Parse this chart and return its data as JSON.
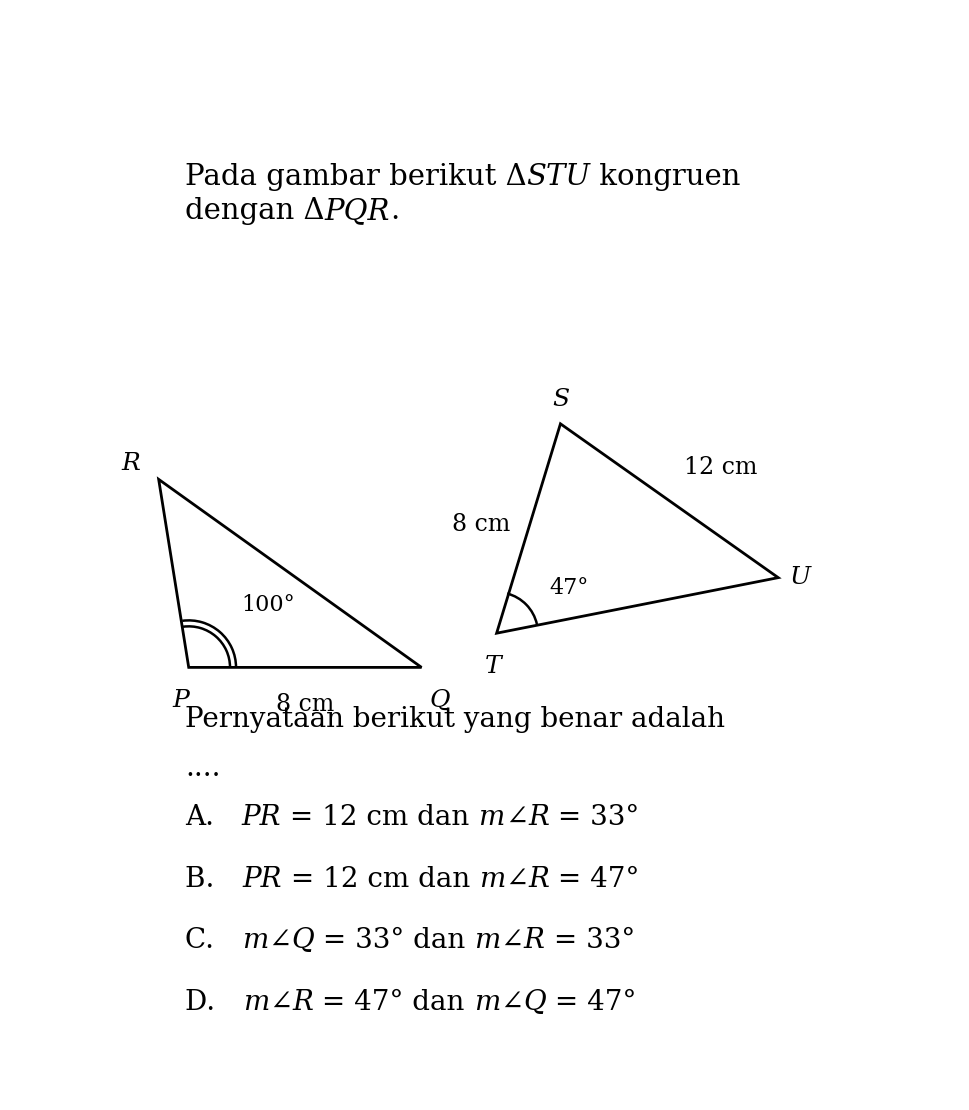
{
  "bg_color": "#ffffff",
  "title_parts_line1": [
    [
      "Pada gambar berikut Δ",
      false
    ],
    [
      "STU",
      true
    ],
    [
      " kongruen",
      false
    ]
  ],
  "title_parts_line2": [
    [
      "dengan Δ",
      false
    ],
    [
      "PQR",
      true
    ],
    [
      ".",
      false
    ]
  ],
  "tri_PQR": {
    "P": [
      0.09,
      0.375
    ],
    "Q": [
      0.4,
      0.375
    ],
    "R": [
      0.05,
      0.595
    ]
  },
  "tri_STU": {
    "T": [
      0.5,
      0.415
    ],
    "S": [
      0.585,
      0.66
    ],
    "U": [
      0.875,
      0.48
    ]
  },
  "font_size_title": 21,
  "font_size_vertex": 18,
  "font_size_label": 17,
  "font_size_angle": 16,
  "font_size_question": 20,
  "font_size_options": 20,
  "question_line1": "Pernyataan berikut yang benar adalah",
  "question_line2": "....",
  "options": [
    [
      [
        "A. ",
        false
      ],
      [
        "PR",
        true
      ],
      [
        " = 12 cm dan ",
        false
      ],
      [
        "m",
        true
      ],
      [
        "∠",
        false
      ],
      [
        "R",
        true
      ],
      [
        " = 33°",
        false
      ]
    ],
    [
      [
        "B. ",
        false
      ],
      [
        "PR",
        true
      ],
      [
        " = 12 cm dan ",
        false
      ],
      [
        "m",
        true
      ],
      [
        "∠",
        false
      ],
      [
        "R",
        true
      ],
      [
        " = 47°",
        false
      ]
    ],
    [
      [
        "C. ",
        false
      ],
      [
        "m",
        true
      ],
      [
        "∠",
        false
      ],
      [
        "Q",
        true
      ],
      [
        " = 33° dan ",
        false
      ],
      [
        "m",
        true
      ],
      [
        "∠",
        false
      ],
      [
        "R",
        true
      ],
      [
        " = 33°",
        false
      ]
    ],
    [
      [
        "D. ",
        false
      ],
      [
        "m",
        true
      ],
      [
        "∠",
        false
      ],
      [
        "R",
        true
      ],
      [
        " = 47° dan ",
        false
      ],
      [
        "m",
        true
      ],
      [
        "∠",
        false
      ],
      [
        "Q",
        true
      ],
      [
        " = 47°",
        false
      ]
    ]
  ]
}
